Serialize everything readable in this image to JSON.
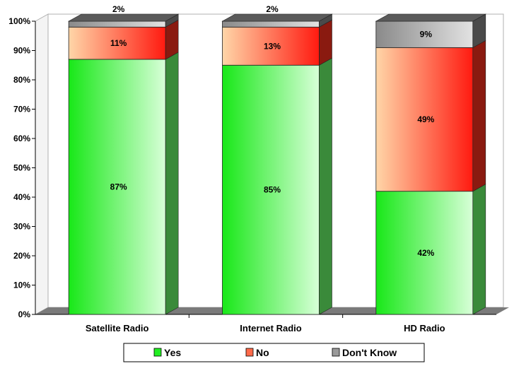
{
  "chart_data": {
    "type": "bar",
    "stacked": true,
    "categories": [
      "Satellite Radio",
      "Internet Radio",
      "HD Radio"
    ],
    "series": [
      {
        "name": "Yes",
        "values": [
          87,
          85,
          42
        ],
        "labels": [
          "87%",
          "85%",
          "42%"
        ],
        "color": "#22ee22"
      },
      {
        "name": "No",
        "values": [
          11,
          13,
          49
        ],
        "labels": [
          "11%",
          "13%",
          "49%"
        ],
        "color": "#ff2b1a"
      },
      {
        "name": "Don't Know",
        "values": [
          2,
          2,
          9
        ],
        "labels": [
          "2%",
          "2%",
          "9%"
        ],
        "color": "#9a9a9a"
      }
    ],
    "yticks": [
      "0%",
      "10%",
      "20%",
      "30%",
      "40%",
      "50%",
      "60%",
      "70%",
      "80%",
      "90%",
      "100%"
    ],
    "ylim": [
      0,
      100
    ],
    "grid": false,
    "legend_position": "bottom"
  }
}
